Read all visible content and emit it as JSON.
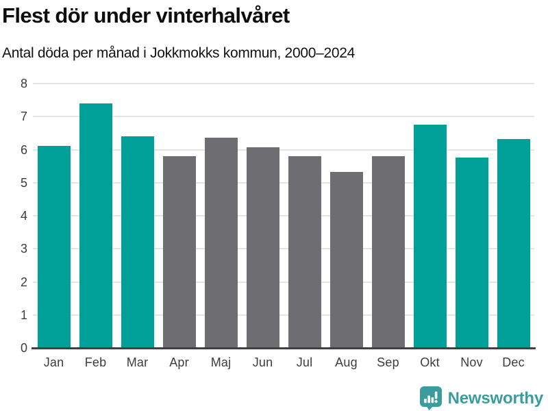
{
  "title": "Flest dör under vinterhalvåret",
  "subtitle": "Antal döda per månad i Jokkmokks kommun, 2000–2024",
  "colors": {
    "winter_bar": "#00a099",
    "summer_bar": "#6e6e72",
    "gridline": "#e4e4e4",
    "axis_line": "#404040",
    "tick_label": "#3c3c3c",
    "title_text": "#0d0d0d",
    "logo_teal": "#3a9d9d"
  },
  "chart_data": {
    "type": "bar",
    "title": "Flest dör under vinterhalvåret",
    "subtitle": "Antal döda per månad i Jokkmokks kommun, 2000–2024",
    "categories": [
      "Jan",
      "Feb",
      "Mar",
      "Apr",
      "Maj",
      "Jun",
      "Jul",
      "Aug",
      "Sep",
      "Okt",
      "Nov",
      "Dec"
    ],
    "values": [
      6.12,
      7.4,
      6.4,
      5.8,
      6.36,
      6.08,
      5.8,
      5.32,
      5.8,
      6.76,
      5.76,
      6.32
    ],
    "bar_seasons": [
      "winter",
      "winter",
      "winter",
      "summer",
      "summer",
      "summer",
      "summer",
      "summer",
      "summer",
      "winter",
      "winter",
      "winter"
    ],
    "xlabel": "",
    "ylabel": "",
    "ylim": [
      0,
      8
    ],
    "yticks": [
      0,
      1,
      2,
      3,
      4,
      5,
      6,
      7,
      8
    ],
    "grid": "horizontal",
    "legend": "none"
  },
  "footer": {
    "brand": "Newsworthy",
    "brand_icon": "newsworthy-logo-icon"
  }
}
